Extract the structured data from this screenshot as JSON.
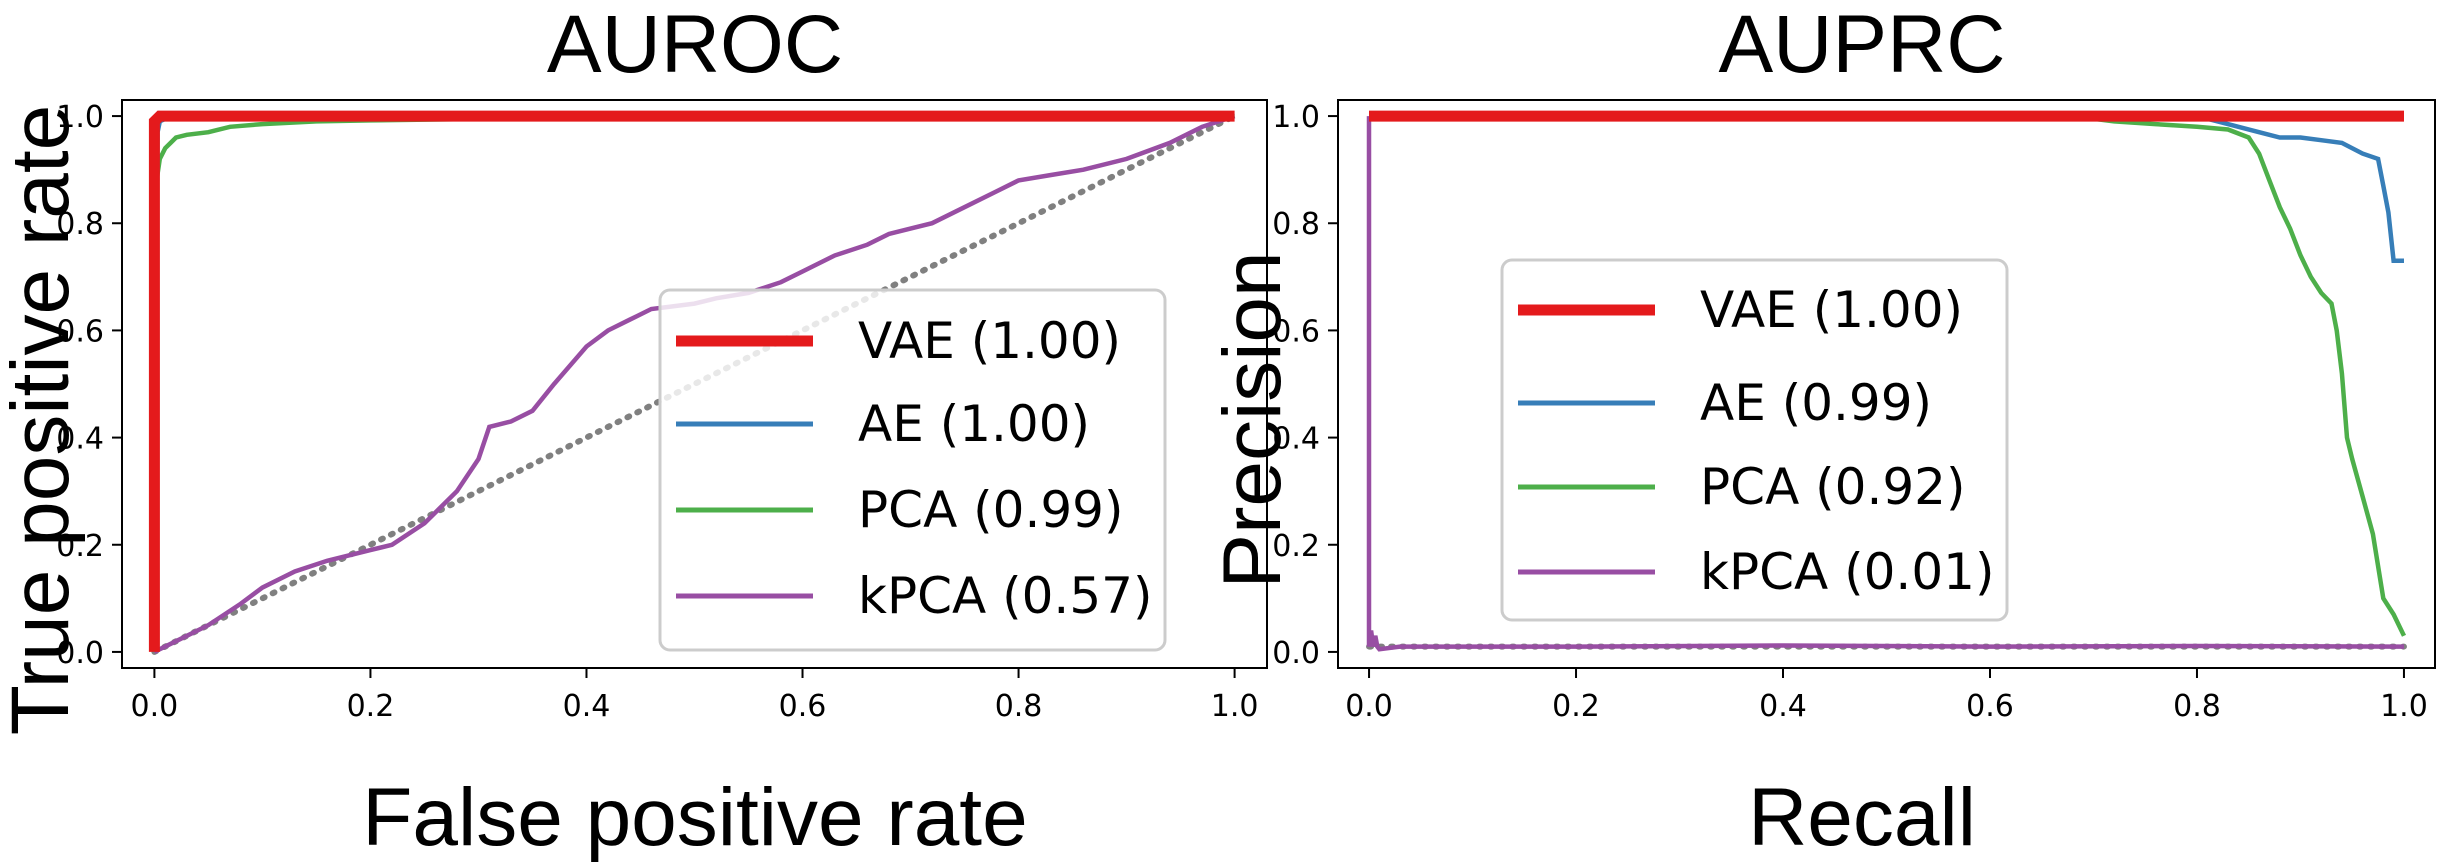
{
  "chart_data": [
    {
      "type": "line",
      "title": "AUROC",
      "xlabel": "False positive rate",
      "ylabel": "True positive rate",
      "xlim": [
        -0.03,
        1.03
      ],
      "ylim": [
        -0.03,
        1.03
      ],
      "xticks": [
        "0.0",
        "0.2",
        "0.4",
        "0.6",
        "0.8",
        "1.0"
      ],
      "yticks": [
        "0.0",
        "0.2",
        "0.4",
        "0.6",
        "0.8",
        "1.0"
      ],
      "grid": false,
      "legend_position": "lower-right",
      "baseline": {
        "style": "dotted",
        "color": "#808080",
        "x": [
          0,
          1
        ],
        "y": [
          0,
          1
        ]
      },
      "series": [
        {
          "name": "VAE (1.00)",
          "color": "#e41a1c",
          "x": [
            0,
            0,
            0.005,
            1
          ],
          "y": [
            0,
            0.99,
            1.0,
            1.0
          ]
        },
        {
          "name": "AE (1.00)",
          "color": "#377eb8",
          "x": [
            0,
            0.003,
            0.005,
            0.01,
            0.02,
            1
          ],
          "y": [
            0,
            0.97,
            0.99,
            0.995,
            1.0,
            1.0
          ]
        },
        {
          "name": "PCA (0.99)",
          "color": "#4daf4a",
          "x": [
            0,
            0.002,
            0.005,
            0.01,
            0.015,
            0.02,
            0.03,
            0.05,
            0.07,
            0.1,
            0.15,
            0.2,
            0.31,
            1
          ],
          "y": [
            0,
            0.88,
            0.92,
            0.94,
            0.95,
            0.96,
            0.965,
            0.97,
            0.98,
            0.985,
            0.99,
            0.992,
            0.995,
            1.0
          ]
        },
        {
          "name": "kPCA (0.57)",
          "color": "#984ea3",
          "x": [
            0,
            0.02,
            0.05,
            0.08,
            0.1,
            0.13,
            0.16,
            0.2,
            0.22,
            0.25,
            0.28,
            0.3,
            0.31,
            0.33,
            0.35,
            0.37,
            0.4,
            0.42,
            0.44,
            0.46,
            0.5,
            0.52,
            0.55,
            0.58,
            0.6,
            0.63,
            0.66,
            0.68,
            0.7,
            0.72,
            0.75,
            0.78,
            0.8,
            0.83,
            0.86,
            0.9,
            0.94,
            0.97,
            1.0
          ],
          "y": [
            0,
            0.02,
            0.05,
            0.09,
            0.12,
            0.15,
            0.17,
            0.19,
            0.2,
            0.24,
            0.3,
            0.36,
            0.42,
            0.43,
            0.45,
            0.5,
            0.57,
            0.6,
            0.62,
            0.64,
            0.65,
            0.66,
            0.67,
            0.69,
            0.71,
            0.74,
            0.76,
            0.78,
            0.79,
            0.8,
            0.83,
            0.86,
            0.88,
            0.89,
            0.9,
            0.92,
            0.95,
            0.98,
            1.0
          ]
        }
      ]
    },
    {
      "type": "line",
      "title": "AUPRC",
      "xlabel": "Recall",
      "ylabel": "Precision",
      "xlim": [
        -0.03,
        1.03
      ],
      "ylim": [
        -0.03,
        1.03
      ],
      "xticks": [
        "0.0",
        "0.2",
        "0.4",
        "0.6",
        "0.8",
        "1.0"
      ],
      "yticks": [
        "0.0",
        "0.2",
        "0.4",
        "0.6",
        "0.8",
        "1.0"
      ],
      "grid": false,
      "legend_position": "center-left",
      "baseline": {
        "style": "dotted",
        "color": "#808080",
        "x": [
          0,
          1
        ],
        "y": [
          0.01,
          0.01
        ]
      },
      "series": [
        {
          "name": "VAE (1.00)",
          "color": "#e41a1c",
          "x": [
            0,
            1
          ],
          "y": [
            1.0,
            1.0
          ]
        },
        {
          "name": "AE (0.99)",
          "color": "#377eb8",
          "x": [
            0,
            0.8,
            0.82,
            0.84,
            0.86,
            0.88,
            0.9,
            0.92,
            0.94,
            0.96,
            0.975,
            0.98,
            0.985,
            0.99,
            1.0
          ],
          "y": [
            1.0,
            1.0,
            0.99,
            0.98,
            0.97,
            0.96,
            0.96,
            0.955,
            0.95,
            0.93,
            0.92,
            0.87,
            0.82,
            0.73,
            0.73
          ]
        },
        {
          "name": "PCA (0.92)",
          "color": "#4daf4a",
          "x": [
            0,
            0.68,
            0.72,
            0.76,
            0.8,
            0.83,
            0.85,
            0.86,
            0.87,
            0.88,
            0.89,
            0.9,
            0.91,
            0.92,
            0.93,
            0.935,
            0.94,
            0.945,
            0.95,
            0.96,
            0.97,
            0.98,
            0.99,
            1.0
          ],
          "y": [
            1.0,
            1.0,
            0.99,
            0.985,
            0.98,
            0.975,
            0.96,
            0.93,
            0.88,
            0.83,
            0.79,
            0.74,
            0.7,
            0.67,
            0.65,
            0.6,
            0.52,
            0.4,
            0.36,
            0.29,
            0.22,
            0.1,
            0.07,
            0.03
          ]
        },
        {
          "name": "kPCA (0.01)",
          "color": "#984ea3",
          "x": [
            0,
            0,
            0.002,
            0.004,
            0.006,
            0.008,
            0.01,
            0.03,
            0.2,
            0.4,
            0.6,
            0.8,
            1.0
          ],
          "y": [
            1.0,
            0.01,
            0.04,
            0.01,
            0.03,
            0.01,
            0.005,
            0.01,
            0.01,
            0.012,
            0.01,
            0.011,
            0.01
          ]
        }
      ]
    }
  ]
}
